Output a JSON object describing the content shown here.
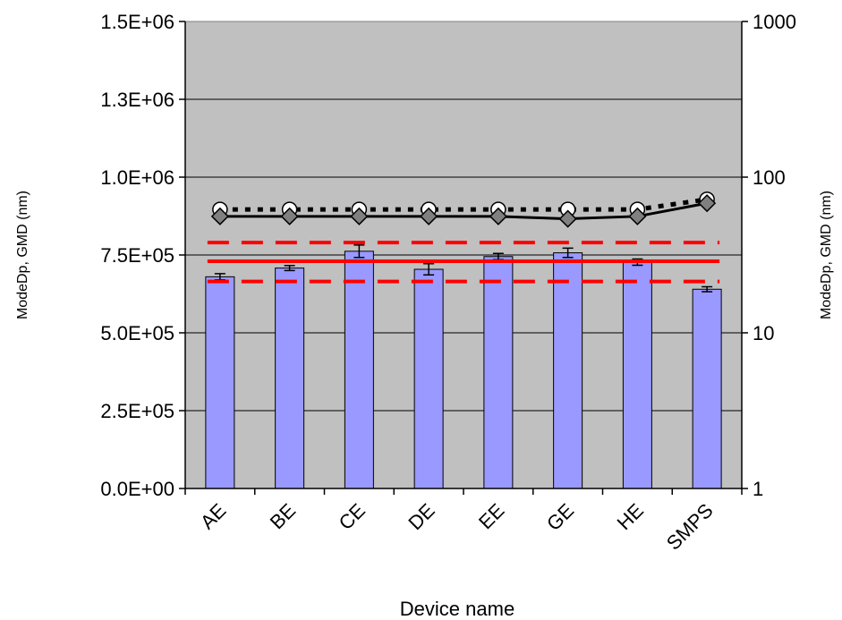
{
  "chart_data": {
    "type": "bar",
    "xlabel": "Device name",
    "ylabel": "ModeDp, GMD (nm)",
    "ylabel_right": "ModeDp, GMD (nm)",
    "categories": [
      "AE",
      "BE",
      "CE",
      "DE",
      "EE",
      "GE",
      "HE",
      "SMPS"
    ],
    "ylim": [
      0,
      1500000
    ],
    "y_ticks": [
      "0.0E+00",
      "2.5E+05",
      "5.0E+05",
      "7.5E+05",
      "1.0E+06",
      "1.3E+06",
      "1.5E+06"
    ],
    "y_tick_values": [
      0,
      250000,
      500000,
      750000,
      1000000,
      1250000,
      1500000
    ],
    "y2_scale": "log",
    "y2lim": [
      1,
      1000
    ],
    "y2_ticks": [
      "1",
      "10",
      "100",
      "1000"
    ],
    "y2_tick_values": [
      1,
      10,
      100,
      1000
    ],
    "grid": true,
    "plot_background": "#c0c0c0",
    "bars": {
      "axis": "left",
      "color": "#9999ff",
      "values": [
        680000,
        708000,
        762000,
        704000,
        745000,
        757000,
        727000,
        640000
      ],
      "errors": [
        10000,
        8000,
        20000,
        18000,
        10000,
        15000,
        10000,
        8000
      ]
    },
    "series": [
      {
        "axis": "right",
        "style": "dotted",
        "marker": "circle",
        "color": "#000000",
        "values": [
          62,
          62,
          62,
          62,
          62,
          62,
          62,
          72
        ]
      },
      {
        "axis": "right",
        "style": "solid",
        "marker": "diamond",
        "color": "#000000",
        "values": [
          56,
          56,
          56,
          56,
          56,
          54,
          56,
          68
        ]
      }
    ],
    "reference_lines": [
      {
        "axis": "left",
        "value": 790000,
        "style": "dashed",
        "color": "#ff0000"
      },
      {
        "axis": "left",
        "value": 730000,
        "style": "solid",
        "color": "#ff0000"
      },
      {
        "axis": "left",
        "value": 665000,
        "style": "dashed",
        "color": "#ff0000"
      }
    ]
  }
}
